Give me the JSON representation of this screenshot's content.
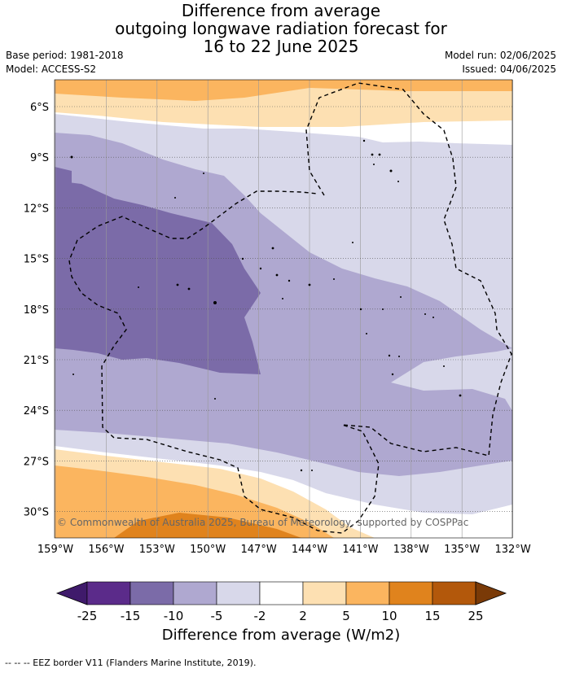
{
  "title_lines": [
    "Difference from average",
    "outgoing longwave radiation forecast for",
    "16 to 22 June 2025"
  ],
  "meta": {
    "base_period": "Base period: 1981-2018",
    "model": "Model: ACCESS-S2",
    "model_run": "Model run: 02/06/2025",
    "issued": "Issued: 04/06/2025"
  },
  "lat_labels": [
    "6°S",
    "9°S",
    "12°S",
    "15°S",
    "18°S",
    "21°S",
    "24°S",
    "27°S",
    "30°S"
  ],
  "lon_labels": [
    "159°W",
    "156°W",
    "153°W",
    "150°W",
    "147°W",
    "144°W",
    "141°W",
    "138°W",
    "135°W",
    "132°W"
  ],
  "copyright": "© Commonwealth of Australia 2025, Bureau of Meteorology, supported by COSPPac",
  "colorbar": {
    "tick_labels": [
      "-25",
      "-15",
      "-10",
      "-5",
      "-2",
      "2",
      "5",
      "10",
      "15",
      "25"
    ],
    "colors": [
      "#3f1a6b",
      "#5b2b8a",
      "#7b6ba8",
      "#afa8d0",
      "#d8d8ea",
      "#ffffff",
      "#fde0b2",
      "#fbb55f",
      "#e0831d",
      "#b3580b",
      "#7a3a07"
    ],
    "title": "Difference from average (W/m2)"
  },
  "footnote": "--  --  -- EEZ border V11 (Flanders Marine Institute, 2019)."
}
